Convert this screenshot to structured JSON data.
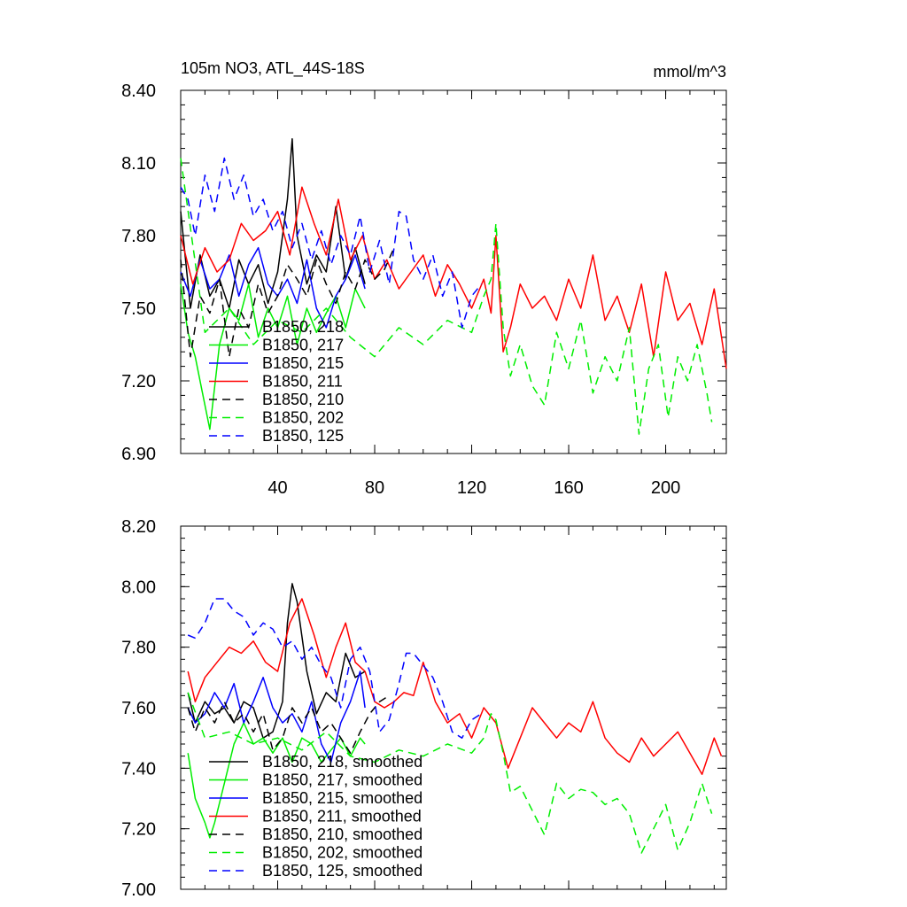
{
  "chart_data": [
    {
      "type": "line",
      "title": "105m NO3, ATL_44S-18S",
      "units": "mmol/m^3",
      "xlim": [
        0,
        225
      ],
      "ylim": [
        6.9,
        8.4
      ],
      "xticks": [
        40,
        80,
        120,
        160,
        200
      ],
      "xtick_labels": [
        "40",
        "80",
        "120",
        "160",
        "200"
      ],
      "yticks": [
        6.9,
        7.2,
        7.5,
        7.8,
        8.1,
        8.4
      ],
      "ytick_labels": [
        "6.90",
        "7.20",
        "7.50",
        "7.80",
        "8.10",
        "8.40"
      ],
      "legend_position": "lower-left",
      "series": [
        {
          "name": "B1850, 218",
          "color": "#000000",
          "dashed": false,
          "x": [
            0,
            4,
            8,
            12,
            16,
            20,
            24,
            28,
            32,
            36,
            40,
            44,
            46,
            48,
            52,
            56,
            60,
            64,
            68,
            72,
            76
          ],
          "y": [
            7.9,
            7.5,
            7.72,
            7.55,
            7.62,
            7.5,
            7.7,
            7.6,
            7.68,
            7.52,
            7.65,
            7.95,
            8.2,
            7.8,
            7.6,
            7.72,
            7.65,
            7.92,
            7.62,
            7.75,
            7.6
          ]
        },
        {
          "name": "B1850, 217",
          "color": "#00ee00",
          "dashed": false,
          "x": [
            0,
            3,
            6,
            9,
            12,
            16,
            20,
            24,
            28,
            32,
            36,
            40,
            44,
            48,
            52,
            56,
            60,
            64,
            68,
            72,
            76
          ],
          "y": [
            7.6,
            7.4,
            7.3,
            7.15,
            7.0,
            7.35,
            7.5,
            7.45,
            7.6,
            7.38,
            7.5,
            7.42,
            7.55,
            7.35,
            7.5,
            7.4,
            7.48,
            7.55,
            7.42,
            7.58,
            7.5
          ]
        },
        {
          "name": "B1850, 215",
          "color": "#0000ff",
          "dashed": false,
          "x": [
            0,
            4,
            8,
            12,
            16,
            20,
            24,
            28,
            32,
            36,
            40,
            44,
            48,
            52,
            56,
            60,
            64,
            68,
            72,
            76
          ],
          "y": [
            7.65,
            7.55,
            7.7,
            7.58,
            7.62,
            7.72,
            7.55,
            7.68,
            7.75,
            7.6,
            7.55,
            7.62,
            7.52,
            7.7,
            7.5,
            7.42,
            7.55,
            7.62,
            7.72,
            7.58
          ]
        },
        {
          "name": "B1850, 211",
          "color": "#ff0000",
          "dashed": false,
          "x": [
            0,
            5,
            10,
            15,
            20,
            25,
            30,
            35,
            40,
            45,
            50,
            55,
            60,
            65,
            70,
            75,
            80,
            85,
            90,
            95,
            100,
            105,
            110,
            115,
            120,
            125,
            128,
            130,
            133,
            136,
            140,
            145,
            150,
            155,
            160,
            165,
            170,
            175,
            180,
            185,
            190,
            195,
            200,
            205,
            210,
            215,
            220,
            225
          ],
          "y": [
            7.8,
            7.6,
            7.75,
            7.65,
            7.7,
            7.85,
            7.78,
            7.82,
            7.9,
            7.72,
            8.0,
            7.85,
            7.72,
            7.95,
            7.7,
            7.8,
            7.62,
            7.7,
            7.58,
            7.65,
            7.72,
            7.55,
            7.68,
            7.6,
            7.5,
            7.62,
            7.48,
            7.8,
            7.32,
            7.42,
            7.6,
            7.5,
            7.55,
            7.45,
            7.62,
            7.5,
            7.72,
            7.45,
            7.55,
            7.4,
            7.6,
            7.3,
            7.65,
            7.45,
            7.52,
            7.35,
            7.58,
            7.25
          ]
        },
        {
          "name": "B1850, 210",
          "color": "#000000",
          "dashed": true,
          "x": [
            0,
            4,
            8,
            12,
            16,
            20,
            24,
            28,
            32,
            36,
            40,
            44,
            48,
            52,
            56,
            60,
            64,
            68,
            72,
            76,
            80,
            84,
            88
          ],
          "y": [
            7.7,
            7.3,
            7.55,
            7.48,
            7.62,
            7.3,
            7.5,
            7.42,
            7.6,
            7.48,
            7.55,
            7.68,
            7.62,
            7.55,
            7.7,
            7.6,
            7.52,
            7.65,
            7.58,
            7.7,
            7.62,
            7.66,
            7.75
          ]
        },
        {
          "name": "B1850, 202",
          "color": "#00ee00",
          "dashed": true,
          "x": [
            0,
            10,
            20,
            30,
            40,
            50,
            60,
            70,
            80,
            90,
            100,
            110,
            120,
            125,
            128,
            130,
            133,
            136,
            140,
            145,
            150,
            155,
            160,
            165,
            170,
            175,
            180,
            185,
            189,
            193,
            197,
            201,
            205,
            209,
            213,
            217,
            219
          ],
          "y": [
            8.12,
            7.4,
            7.5,
            7.35,
            7.45,
            7.4,
            7.5,
            7.38,
            7.3,
            7.42,
            7.35,
            7.45,
            7.4,
            7.55,
            7.62,
            7.85,
            7.42,
            7.22,
            7.35,
            7.18,
            7.1,
            7.4,
            7.25,
            7.45,
            7.15,
            7.3,
            7.2,
            7.42,
            6.98,
            7.25,
            7.35,
            7.05,
            7.3,
            7.2,
            7.35,
            7.15,
            7.03
          ]
        },
        {
          "name": "B1850, 125",
          "color": "#0000ff",
          "dashed": true,
          "x": [
            0,
            3,
            6,
            10,
            14,
            18,
            22,
            26,
            30,
            34,
            38,
            42,
            46,
            50,
            54,
            58,
            62,
            66,
            70,
            74,
            78,
            82,
            86,
            90,
            93,
            96,
            100,
            104,
            108,
            112,
            116,
            120,
            124
          ],
          "y": [
            8.0,
            7.95,
            7.8,
            8.05,
            7.9,
            8.12,
            7.95,
            8.05,
            7.88,
            7.95,
            7.82,
            7.9,
            7.75,
            7.85,
            7.7,
            7.82,
            7.68,
            7.8,
            7.72,
            7.88,
            7.65,
            7.78,
            7.6,
            7.9,
            7.88,
            7.7,
            7.62,
            7.72,
            7.55,
            7.65,
            7.42,
            7.55,
            7.6
          ]
        }
      ]
    },
    {
      "type": "line",
      "xlim": [
        0,
        225
      ],
      "ylim": [
        7.0,
        8.2
      ],
      "yticks": [
        7.0,
        7.2,
        7.4,
        7.6,
        7.8,
        8.0,
        8.2
      ],
      "ytick_labels": [
        "7.00",
        "7.20",
        "7.40",
        "7.60",
        "7.80",
        "8.00",
        "8.20"
      ],
      "xticks": [
        40,
        80,
        120,
        160,
        200
      ],
      "legend_position": "lower-left",
      "series": [
        {
          "name": "B1850, 218, smoothed",
          "color": "#000000",
          "dashed": false,
          "x": [
            3,
            6,
            10,
            14,
            18,
            22,
            26,
            30,
            34,
            38,
            42,
            44,
            46,
            48,
            52,
            56,
            60,
            64,
            68,
            72,
            76
          ],
          "y": [
            7.65,
            7.55,
            7.62,
            7.58,
            7.6,
            7.55,
            7.62,
            7.6,
            7.5,
            7.52,
            7.62,
            7.88,
            8.01,
            7.95,
            7.72,
            7.58,
            7.65,
            7.62,
            7.78,
            7.7,
            7.72
          ]
        },
        {
          "name": "B1850, 217, smoothed",
          "color": "#00ee00",
          "dashed": false,
          "x": [
            3,
            6,
            10,
            12,
            14,
            18,
            22,
            26,
            30,
            34,
            38,
            42,
            46,
            50,
            54,
            58,
            62,
            66,
            70,
            74,
            76
          ],
          "y": [
            7.45,
            7.3,
            7.22,
            7.17,
            7.22,
            7.35,
            7.48,
            7.55,
            7.48,
            7.5,
            7.45,
            7.5,
            7.42,
            7.5,
            7.48,
            7.42,
            7.46,
            7.5,
            7.44,
            7.5,
            7.48
          ]
        },
        {
          "name": "B1850, 215, smoothed",
          "color": "#0000ff",
          "dashed": false,
          "x": [
            3,
            6,
            10,
            14,
            18,
            22,
            26,
            30,
            34,
            38,
            42,
            46,
            50,
            54,
            58,
            62,
            66,
            70,
            74,
            76
          ],
          "y": [
            7.6,
            7.55,
            7.58,
            7.65,
            7.6,
            7.68,
            7.55,
            7.62,
            7.7,
            7.6,
            7.55,
            7.58,
            7.52,
            7.62,
            7.48,
            7.42,
            7.55,
            7.62,
            7.72,
            7.6
          ]
        },
        {
          "name": "B1850, 211, smoothed",
          "color": "#ff0000",
          "dashed": false,
          "x": [
            3,
            6,
            10,
            15,
            20,
            25,
            30,
            35,
            40,
            45,
            50,
            55,
            60,
            64,
            68,
            72,
            76,
            80,
            84,
            88,
            92,
            96,
            100,
            105,
            110,
            115,
            120,
            125,
            130,
            135,
            140,
            145,
            150,
            155,
            160,
            165,
            170,
            175,
            180,
            185,
            190,
            195,
            200,
            205,
            210,
            215,
            220,
            223
          ],
          "y": [
            7.72,
            7.62,
            7.7,
            7.75,
            7.8,
            7.78,
            7.82,
            7.75,
            7.72,
            7.88,
            7.96,
            7.84,
            7.7,
            7.8,
            7.88,
            7.75,
            7.72,
            7.62,
            7.6,
            7.62,
            7.65,
            7.64,
            7.75,
            7.62,
            7.55,
            7.58,
            7.5,
            7.6,
            7.55,
            7.4,
            7.5,
            7.6,
            7.55,
            7.5,
            7.55,
            7.52,
            7.62,
            7.5,
            7.45,
            7.42,
            7.5,
            7.44,
            7.48,
            7.52,
            7.45,
            7.38,
            7.5,
            7.44
          ]
        },
        {
          "name": "B1850, 210, smoothed",
          "color": "#000000",
          "dashed": true,
          "x": [
            3,
            6,
            10,
            14,
            18,
            22,
            26,
            30,
            34,
            38,
            42,
            46,
            50,
            54,
            58,
            62,
            66,
            70,
            74,
            78,
            82,
            86
          ],
          "y": [
            7.6,
            7.52,
            7.6,
            7.55,
            7.62,
            7.55,
            7.58,
            7.52,
            7.58,
            7.46,
            7.5,
            7.6,
            7.55,
            7.6,
            7.52,
            7.55,
            7.5,
            7.45,
            7.52,
            7.58,
            7.62,
            7.64
          ]
        },
        {
          "name": "B1850, 202, smoothed",
          "color": "#00ee00",
          "dashed": true,
          "x": [
            3,
            10,
            20,
            30,
            40,
            50,
            60,
            70,
            80,
            90,
            100,
            110,
            120,
            125,
            128,
            130,
            133,
            136,
            140,
            145,
            150,
            155,
            160,
            165,
            170,
            175,
            180,
            185,
            190,
            195,
            200,
            205,
            210,
            215,
            219
          ],
          "y": [
            7.65,
            7.5,
            7.52,
            7.48,
            7.5,
            7.46,
            7.52,
            7.44,
            7.42,
            7.46,
            7.44,
            7.48,
            7.45,
            7.5,
            7.58,
            7.56,
            7.45,
            7.32,
            7.34,
            7.26,
            7.18,
            7.35,
            7.3,
            7.33,
            7.32,
            7.28,
            7.3,
            7.25,
            7.12,
            7.2,
            7.28,
            7.13,
            7.22,
            7.35,
            7.25
          ]
        },
        {
          "name": "B1850, 125, smoothed",
          "color": "#0000ff",
          "dashed": true,
          "x": [
            3,
            6,
            10,
            14,
            18,
            22,
            26,
            30,
            34,
            38,
            42,
            46,
            50,
            54,
            58,
            62,
            66,
            70,
            74,
            78,
            82,
            86,
            90,
            93,
            96,
            100,
            104,
            108,
            112,
            116,
            120,
            124
          ],
          "y": [
            7.84,
            7.83,
            7.88,
            7.96,
            7.96,
            7.92,
            7.9,
            7.84,
            7.88,
            7.86,
            7.8,
            7.82,
            7.76,
            7.8,
            7.74,
            7.7,
            7.6,
            7.76,
            7.8,
            7.72,
            7.52,
            7.56,
            7.68,
            7.78,
            7.78,
            7.74,
            7.7,
            7.62,
            7.52,
            7.5,
            7.56,
            7.58
          ]
        }
      ]
    }
  ]
}
